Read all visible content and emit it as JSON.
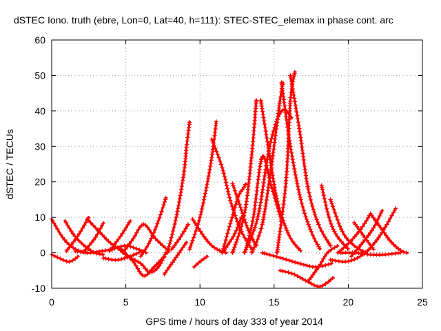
{
  "chart_data": {
    "type": "scatter",
    "title": "dSTEC Iono. truth (ebre, Lon=0, Lat=40, h=111): STEC-STEC_elemax in phase cont. arc",
    "xlabel": "GPS time / hours of day 333 of year 2014",
    "ylabel": "dSTEC  / TECUs",
    "xlim": [
      0,
      25
    ],
    "ylim": [
      -10,
      60
    ],
    "x_ticks": [
      0,
      5,
      10,
      15,
      20,
      25
    ],
    "y_ticks": [
      -10,
      0,
      10,
      20,
      30,
      40,
      50,
      60
    ],
    "grid": true,
    "legend": "none",
    "marker": "plus",
    "color": "#ff0000",
    "series": [
      {
        "x": [
          0,
          0.8,
          1.6,
          2.4
        ],
        "y": [
          9.5,
          4,
          1,
          0
        ]
      },
      {
        "x": [
          0,
          0.5,
          1.2,
          1.8
        ],
        "y": [
          -0.5,
          -1.5,
          -2.5,
          -1
        ]
      },
      {
        "x": [
          0.9,
          1.5,
          2.2,
          2.9,
          3.5
        ],
        "y": [
          9,
          5,
          2,
          0,
          -0.5
        ]
      },
      {
        "x": [
          1,
          1.8,
          2.5
        ],
        "y": [
          0.5,
          5,
          10
        ]
      },
      {
        "x": [
          1.6,
          2.5,
          3.4,
          4.1
        ],
        "y": [
          0.5,
          0,
          0.5,
          1
        ]
      },
      {
        "x": [
          2.4,
          3.2,
          3.9,
          4.7,
          5.1
        ],
        "y": [
          9.5,
          6,
          3,
          0.5,
          -1
        ]
      },
      {
        "x": [
          2.2,
          2.9,
          3.5
        ],
        "y": [
          0.5,
          4,
          8.5
        ]
      },
      {
        "x": [
          3.5,
          4.4,
          5.3,
          6.1
        ],
        "y": [
          -1.5,
          -2,
          -1,
          0.5
        ]
      },
      {
        "x": [
          3.9,
          4.7,
          5.3
        ],
        "y": [
          0.5,
          5,
          9
        ]
      },
      {
        "x": [
          4.1,
          5,
          5.8,
          6.4
        ],
        "y": [
          1,
          2,
          1,
          0
        ]
      },
      {
        "x": [
          4.8,
          5.5,
          6.2,
          7,
          7.9
        ],
        "y": [
          0,
          4,
          8,
          4,
          0.5
        ]
      },
      {
        "x": [
          5.1,
          6,
          6.6,
          7.2,
          7.7
        ],
        "y": [
          -1,
          -3,
          -5.5,
          -4,
          0
        ]
      },
      {
        "x": [
          4.7,
          5.5,
          6.2,
          6.9,
          7.6
        ],
        "y": [
          1,
          -2.5,
          -6.5,
          -4,
          -1
        ]
      },
      {
        "x": [
          6,
          6.6,
          7.2,
          7.7
        ],
        "y": [
          -1,
          3,
          9,
          15.5
        ]
      },
      {
        "x": [
          7.6,
          8.1,
          8.6,
          9.1
        ],
        "y": [
          -6,
          -3,
          0,
          3
        ]
      },
      {
        "x": [
          7.8,
          8.4,
          8.9,
          9.1,
          9.3
        ],
        "y": [
          0,
          10,
          22,
          30,
          37
        ]
      },
      {
        "x": [
          8.1,
          8.7,
          9.2
        ],
        "y": [
          1,
          4.5,
          8
        ]
      },
      {
        "x": [
          9.6,
          10,
          10.5
        ],
        "y": [
          -4,
          -2.5,
          -1
        ]
      },
      {
        "x": [
          9.5,
          10.2,
          10.8,
          11.4,
          11.8
        ],
        "y": [
          9.5,
          5,
          2,
          0.5,
          0
        ]
      },
      {
        "x": [
          9.3,
          10,
          10.6,
          10.9,
          11.1
        ],
        "y": [
          1,
          10,
          22,
          30,
          37
        ]
      },
      {
        "x": [
          10.8,
          11.5,
          12.1,
          12.8,
          13.5
        ],
        "y": [
          32,
          24,
          14,
          6,
          1
        ]
      },
      {
        "x": [
          11.5,
          12.1,
          12.6,
          12.9,
          13.1
        ],
        "y": [
          0,
          9,
          16,
          18,
          19.5
        ]
      },
      {
        "x": [
          12.2,
          12.8,
          13.3,
          13.8
        ],
        "y": [
          19.5,
          12,
          6,
          2
        ]
      },
      {
        "x": [
          11.6,
          12.3,
          12.8
        ],
        "y": [
          0.5,
          5,
          10
        ]
      },
      {
        "x": [
          12.2,
          13,
          13.5,
          13.8
        ],
        "y": [
          0,
          11,
          28,
          43
        ]
      },
      {
        "x": [
          13.1,
          13.6,
          14.2,
          14.8,
          15.5
        ],
        "y": [
          1,
          10,
          27,
          19,
          9
        ]
      },
      {
        "x": [
          13.5,
          14.2,
          14.8,
          15.4,
          15.6
        ],
        "y": [
          0,
          8,
          24,
          43,
          48
        ]
      },
      {
        "x": [
          14.1,
          14.6,
          15.2,
          16,
          16.8
        ],
        "y": [
          43,
          30,
          15,
          5,
          0.5
        ]
      },
      {
        "x": [
          15.5,
          16.1,
          16.8,
          17.5,
          18.1
        ],
        "y": [
          48,
          30,
          15,
          6,
          1
        ]
      },
      {
        "x": [
          15.2,
          15.8,
          16.1,
          16.4
        ],
        "y": [
          0,
          20,
          43,
          51
        ]
      },
      {
        "x": [
          16.1,
          16.7,
          17.3,
          18,
          18.8
        ],
        "y": [
          50,
          35,
          18,
          8,
          2
        ]
      },
      {
        "x": [
          13,
          13.9,
          14.7,
          15.5,
          16.2
        ],
        "y": [
          0,
          10,
          30,
          40,
          38
        ]
      },
      {
        "x": [
          15.4,
          16.3,
          17.2,
          18.1,
          19
        ],
        "y": [
          -5,
          -6,
          -8,
          -9.5,
          -7
        ]
      },
      {
        "x": [
          14.2,
          15.5,
          16.7,
          17.8,
          18.9
        ],
        "y": [
          0,
          -1.5,
          -3,
          -4,
          -3
        ]
      },
      {
        "x": [
          17.3,
          18,
          18.6,
          19.3
        ],
        "y": [
          -8,
          -4,
          0,
          2
        ]
      },
      {
        "x": [
          18.2,
          18.7,
          19.2,
          20
        ],
        "y": [
          19,
          10,
          5,
          1
        ]
      },
      {
        "x": [
          18.8,
          19.6,
          20.4,
          21.2
        ],
        "y": [
          15,
          6,
          2,
          0
        ]
      },
      {
        "x": [
          18.8,
          19.8,
          20.6,
          21.3
        ],
        "y": [
          -2,
          -2.5,
          -1.5,
          0.5
        ]
      },
      {
        "x": [
          19.3,
          20.1,
          20.9,
          21.5
        ],
        "y": [
          0,
          3,
          7,
          11
        ]
      },
      {
        "x": [
          20.4,
          21,
          21.7
        ],
        "y": [
          8.5,
          5,
          1
        ]
      },
      {
        "x": [
          21.3,
          22,
          22.6,
          23.2
        ],
        "y": [
          0.5,
          4,
          8,
          12.5
        ]
      },
      {
        "x": [
          20.2,
          21,
          21.7,
          22.3
        ],
        "y": [
          -1,
          3,
          7,
          12
        ]
      },
      {
        "x": [
          21.5,
          22.2,
          22.9,
          23.6,
          24
        ],
        "y": [
          11,
          7,
          3,
          0.5,
          0
        ]
      },
      {
        "x": [
          19.5,
          20.5,
          21.5,
          22.5,
          23.5
        ],
        "y": [
          0,
          0,
          -0.5,
          -0.5,
          0
        ]
      }
    ]
  }
}
